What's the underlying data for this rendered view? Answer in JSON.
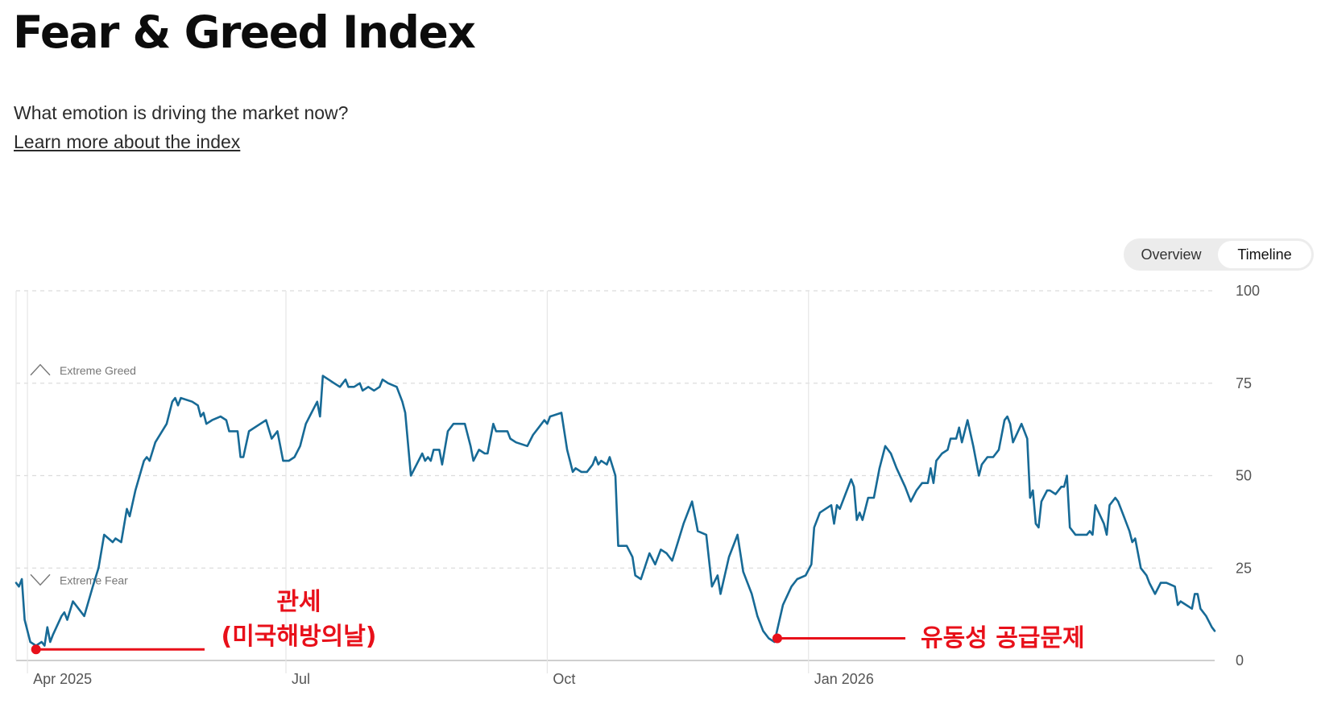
{
  "page": {
    "title": "Fear & Greed Index",
    "subtitle": "What emotion is driving the market now?",
    "learn_more": "Learn more about the index"
  },
  "toggle": {
    "overview": "Overview",
    "timeline": "Timeline",
    "selected": "Timeline"
  },
  "chart_data": {
    "type": "line",
    "title": "",
    "xlabel": "",
    "ylabel": "",
    "ylim": [
      0,
      100
    ],
    "y_ticks": [
      0,
      25,
      50,
      75,
      100
    ],
    "x_ticks": [
      {
        "label": "Apr 2025",
        "date": "2025-04-01"
      },
      {
        "label": "Jul",
        "date": "2025-07-01"
      },
      {
        "label": "Oct",
        "date": "2025-10-01"
      },
      {
        "label": "Jan 2026",
        "date": "2026-01-01"
      }
    ],
    "zones": [
      {
        "label": "Extreme Greed",
        "threshold": 75
      },
      {
        "label": "Extreme Fear",
        "threshold": 25
      }
    ],
    "grid": true,
    "line_color": "#176a96",
    "series": [
      {
        "points": [
          [
            "2025-03-28",
            21
          ],
          [
            "2025-03-29",
            20
          ],
          [
            "2025-03-30",
            22
          ],
          [
            "2025-03-31",
            11
          ],
          [
            "2025-04-02",
            5
          ],
          [
            "2025-04-04",
            4
          ],
          [
            "2025-04-06",
            5
          ],
          [
            "2025-04-07",
            4
          ],
          [
            "2025-04-08",
            9
          ],
          [
            "2025-04-09",
            5
          ],
          [
            "2025-04-10",
            7
          ],
          [
            "2025-04-13",
            12
          ],
          [
            "2025-04-14",
            13
          ],
          [
            "2025-04-15",
            11
          ],
          [
            "2025-04-17",
            16
          ],
          [
            "2025-04-21",
            12
          ],
          [
            "2025-04-24",
            20
          ],
          [
            "2025-04-26",
            25
          ],
          [
            "2025-04-28",
            34
          ],
          [
            "2025-05-01",
            32
          ],
          [
            "2025-05-02",
            33
          ],
          [
            "2025-05-04",
            32
          ],
          [
            "2025-05-06",
            41
          ],
          [
            "2025-05-07",
            39
          ],
          [
            "2025-05-09",
            46
          ],
          [
            "2025-05-12",
            54
          ],
          [
            "2025-05-13",
            55
          ],
          [
            "2025-05-14",
            54
          ],
          [
            "2025-05-16",
            59
          ],
          [
            "2025-05-20",
            64
          ],
          [
            "2025-05-22",
            70
          ],
          [
            "2025-05-23",
            71
          ],
          [
            "2025-05-24",
            69
          ],
          [
            "2025-05-25",
            71
          ],
          [
            "2025-05-29",
            70
          ],
          [
            "2025-05-31",
            69
          ],
          [
            "2025-06-01",
            66
          ],
          [
            "2025-06-02",
            67
          ],
          [
            "2025-06-03",
            64
          ],
          [
            "2025-06-05",
            65
          ],
          [
            "2025-06-08",
            66
          ],
          [
            "2025-06-10",
            65
          ],
          [
            "2025-06-11",
            62
          ],
          [
            "2025-06-14",
            62
          ],
          [
            "2025-06-15",
            55
          ],
          [
            "2025-06-16",
            55
          ],
          [
            "2025-06-18",
            62
          ],
          [
            "2025-06-22",
            64
          ],
          [
            "2025-06-24",
            65
          ],
          [
            "2025-06-26",
            60
          ],
          [
            "2025-06-28",
            62
          ],
          [
            "2025-06-30",
            54
          ],
          [
            "2025-07-02",
            54
          ],
          [
            "2025-07-04",
            55
          ],
          [
            "2025-07-06",
            58
          ],
          [
            "2025-07-08",
            64
          ],
          [
            "2025-07-10",
            67
          ],
          [
            "2025-07-12",
            70
          ],
          [
            "2025-07-13",
            66
          ],
          [
            "2025-07-14",
            77
          ],
          [
            "2025-07-16",
            76
          ],
          [
            "2025-07-18",
            75
          ],
          [
            "2025-07-20",
            74
          ],
          [
            "2025-07-22",
            76
          ],
          [
            "2025-07-23",
            74
          ],
          [
            "2025-07-25",
            74
          ],
          [
            "2025-07-27",
            75
          ],
          [
            "2025-07-28",
            73
          ],
          [
            "2025-07-30",
            74
          ],
          [
            "2025-08-01",
            73
          ],
          [
            "2025-08-03",
            74
          ],
          [
            "2025-08-04",
            76
          ],
          [
            "2025-08-06",
            75
          ],
          [
            "2025-08-09",
            74
          ],
          [
            "2025-08-11",
            70
          ],
          [
            "2025-08-12",
            67
          ],
          [
            "2025-08-14",
            50
          ],
          [
            "2025-08-16",
            53
          ],
          [
            "2025-08-18",
            56
          ],
          [
            "2025-08-19",
            54
          ],
          [
            "2025-08-20",
            55
          ],
          [
            "2025-08-21",
            54
          ],
          [
            "2025-08-22",
            57
          ],
          [
            "2025-08-24",
            57
          ],
          [
            "2025-08-25",
            53
          ],
          [
            "2025-08-27",
            62
          ],
          [
            "2025-08-29",
            64
          ],
          [
            "2025-09-02",
            64
          ],
          [
            "2025-09-04",
            58
          ],
          [
            "2025-09-05",
            54
          ],
          [
            "2025-09-07",
            57
          ],
          [
            "2025-09-09",
            56
          ],
          [
            "2025-09-10",
            56
          ],
          [
            "2025-09-12",
            64
          ],
          [
            "2025-09-13",
            62
          ],
          [
            "2025-09-14",
            62
          ],
          [
            "2025-09-17",
            62
          ],
          [
            "2025-09-18",
            60
          ],
          [
            "2025-09-20",
            59
          ],
          [
            "2025-09-24",
            58
          ],
          [
            "2025-09-26",
            61
          ],
          [
            "2025-09-28",
            63
          ],
          [
            "2025-09-30",
            65
          ],
          [
            "2025-10-01",
            64
          ],
          [
            "2025-10-02",
            66
          ],
          [
            "2025-10-06",
            67
          ],
          [
            "2025-10-08",
            57
          ],
          [
            "2025-10-10",
            51
          ],
          [
            "2025-10-11",
            52
          ],
          [
            "2025-10-13",
            51
          ],
          [
            "2025-10-15",
            51
          ],
          [
            "2025-10-17",
            53
          ],
          [
            "2025-10-18",
            55
          ],
          [
            "2025-10-19",
            53
          ],
          [
            "2025-10-20",
            54
          ],
          [
            "2025-10-22",
            53
          ],
          [
            "2025-10-23",
            55
          ],
          [
            "2025-10-25",
            50
          ],
          [
            "2025-10-26",
            31
          ],
          [
            "2025-10-29",
            31
          ],
          [
            "2025-10-31",
            28
          ],
          [
            "2025-11-01",
            23
          ],
          [
            "2025-11-03",
            22
          ],
          [
            "2025-11-06",
            29
          ],
          [
            "2025-11-08",
            26
          ],
          [
            "2025-11-10",
            30
          ],
          [
            "2025-11-12",
            29
          ],
          [
            "2025-11-14",
            27
          ],
          [
            "2025-11-16",
            32
          ],
          [
            "2025-11-18",
            37
          ],
          [
            "2025-11-21",
            43
          ],
          [
            "2025-11-23",
            35
          ],
          [
            "2025-11-26",
            34
          ],
          [
            "2025-11-28",
            20
          ],
          [
            "2025-11-30",
            23
          ],
          [
            "2025-12-01",
            18
          ],
          [
            "2025-12-04",
            28
          ],
          [
            "2025-12-06",
            32
          ],
          [
            "2025-12-07",
            34
          ],
          [
            "2025-12-09",
            24
          ],
          [
            "2025-12-12",
            18
          ],
          [
            "2025-12-14",
            12
          ],
          [
            "2025-12-16",
            8
          ],
          [
            "2025-12-18",
            6
          ],
          [
            "2025-12-20",
            5
          ],
          [
            "2025-12-23",
            15
          ],
          [
            "2025-12-26",
            20
          ],
          [
            "2025-12-28",
            22
          ],
          [
            "2025-12-31",
            23
          ],
          [
            "2026-01-02",
            26
          ],
          [
            "2026-01-03",
            36
          ],
          [
            "2026-01-05",
            40
          ],
          [
            "2026-01-07",
            41
          ],
          [
            "2026-01-09",
            42
          ],
          [
            "2026-01-10",
            37
          ],
          [
            "2026-01-11",
            42
          ],
          [
            "2026-01-12",
            41
          ],
          [
            "2026-01-14",
            45
          ],
          [
            "2026-01-16",
            49
          ],
          [
            "2026-01-17",
            47
          ],
          [
            "2026-01-18",
            38
          ],
          [
            "2026-01-19",
            40
          ],
          [
            "2026-01-20",
            38
          ],
          [
            "2026-01-22",
            44
          ],
          [
            "2026-01-24",
            44
          ],
          [
            "2026-01-26",
            52
          ],
          [
            "2026-01-28",
            58
          ],
          [
            "2026-01-30",
            56
          ],
          [
            "2026-02-01",
            52
          ],
          [
            "2026-02-04",
            47
          ],
          [
            "2026-02-06",
            43
          ],
          [
            "2026-02-08",
            46
          ],
          [
            "2026-02-10",
            48
          ],
          [
            "2026-02-12",
            48
          ],
          [
            "2026-02-13",
            52
          ],
          [
            "2026-02-14",
            48
          ],
          [
            "2026-02-15",
            54
          ],
          [
            "2026-02-17",
            56
          ],
          [
            "2026-02-19",
            57
          ],
          [
            "2026-02-20",
            60
          ],
          [
            "2026-02-22",
            60
          ],
          [
            "2026-02-23",
            63
          ],
          [
            "2026-02-24",
            59
          ],
          [
            "2026-02-26",
            65
          ],
          [
            "2026-02-28",
            58
          ],
          [
            "2026-03-02",
            50
          ],
          [
            "2026-03-03",
            53
          ],
          [
            "2026-03-05",
            55
          ],
          [
            "2026-03-07",
            55
          ],
          [
            "2026-03-09",
            57
          ],
          [
            "2026-03-11",
            65
          ],
          [
            "2026-03-12",
            66
          ],
          [
            "2026-03-13",
            64
          ],
          [
            "2026-03-14",
            59
          ],
          [
            "2026-03-17",
            64
          ],
          [
            "2026-03-19",
            60
          ],
          [
            "2026-03-20",
            44
          ],
          [
            "2026-03-21",
            46
          ],
          [
            "2026-03-22",
            37
          ],
          [
            "2026-03-23",
            36
          ],
          [
            "2026-03-24",
            43
          ],
          [
            "2026-03-26",
            46
          ],
          [
            "2026-03-27",
            46
          ],
          [
            "2026-03-29",
            45
          ],
          [
            "2026-03-31",
            47
          ],
          [
            "2026-04-01",
            47
          ],
          [
            "2026-04-02",
            50
          ],
          [
            "2026-04-03",
            36
          ],
          [
            "2026-04-05",
            34
          ],
          [
            "2026-04-09",
            34
          ],
          [
            "2026-04-10",
            35
          ],
          [
            "2026-04-11",
            34
          ],
          [
            "2026-04-12",
            42
          ],
          [
            "2026-04-15",
            37
          ],
          [
            "2026-04-16",
            34
          ],
          [
            "2026-04-17",
            42
          ],
          [
            "2026-04-19",
            44
          ],
          [
            "2026-04-20",
            43
          ],
          [
            "2026-04-22",
            39
          ],
          [
            "2026-04-24",
            35
          ],
          [
            "2026-04-25",
            32
          ],
          [
            "2026-04-26",
            33
          ],
          [
            "2026-04-28",
            25
          ],
          [
            "2026-04-30",
            23
          ],
          [
            "2026-05-01",
            21
          ],
          [
            "2026-05-03",
            18
          ],
          [
            "2026-05-05",
            21
          ],
          [
            "2026-05-07",
            21
          ],
          [
            "2026-05-10",
            20
          ],
          [
            "2026-05-11",
            15
          ],
          [
            "2026-05-12",
            16
          ],
          [
            "2026-05-14",
            15
          ],
          [
            "2026-05-16",
            14
          ],
          [
            "2026-05-17",
            18
          ],
          [
            "2026-05-18",
            18
          ],
          [
            "2026-05-19",
            14
          ],
          [
            "2026-05-21",
            12
          ],
          [
            "2026-05-23",
            9
          ],
          [
            "2026-05-24",
            8
          ]
        ]
      }
    ],
    "annotations": [
      {
        "lines": [
          "관세",
          "(미국해방의날)"
        ],
        "date": "2025-04-04",
        "value": 3
      },
      {
        "lines": [
          "유동성 공급문제"
        ],
        "date": "2025-12-21",
        "value": 6
      }
    ],
    "annotation_color": "#e8101a"
  }
}
